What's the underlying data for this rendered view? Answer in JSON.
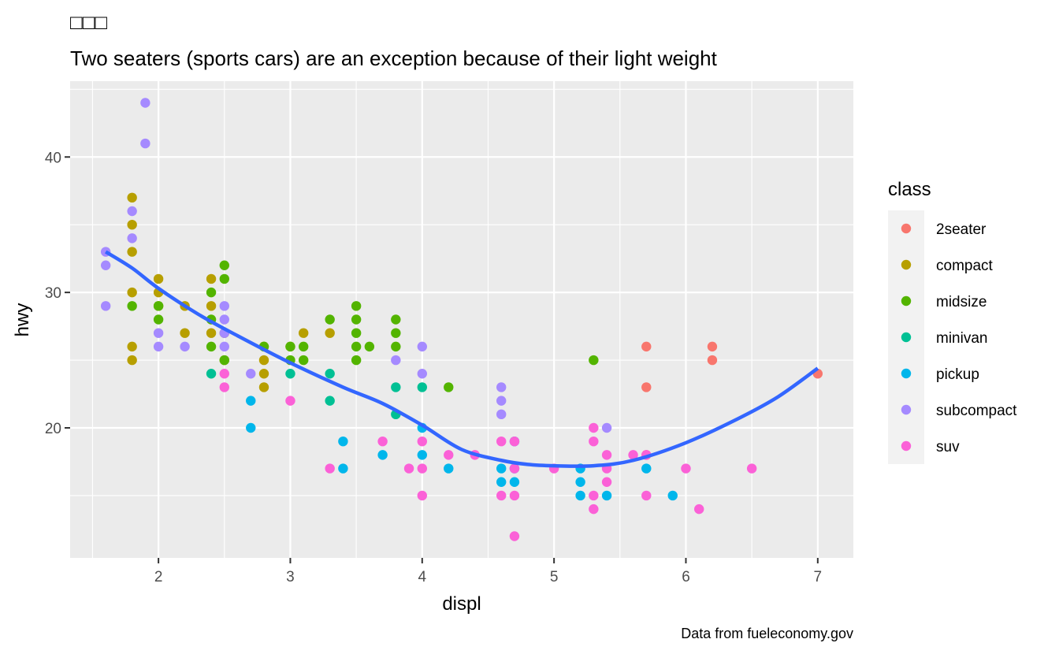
{
  "chart_data": {
    "type": "scatter",
    "title": "□□□",
    "subtitle": "Two seaters (sports cars) are an exception because of their light weight",
    "caption": "Data from fueleconomy.gov",
    "xlabel": "displ",
    "ylabel": "hwy",
    "xlim": [
      1.33,
      7.27
    ],
    "ylim": [
      10.4,
      45.6
    ],
    "x_ticks": [
      2,
      3,
      4,
      5,
      6,
      7
    ],
    "y_ticks": [
      20,
      30,
      40
    ],
    "grid": true,
    "legend": {
      "title": "class",
      "placement": "right",
      "entries": [
        {
          "name": "2seater",
          "color": "#F8766D"
        },
        {
          "name": "compact",
          "color": "#B79F00"
        },
        {
          "name": "midsize",
          "color": "#53B400"
        },
        {
          "name": "minivan",
          "color": "#00C094"
        },
        {
          "name": "pickup",
          "color": "#00B6EB"
        },
        {
          "name": "subcompact",
          "color": "#A58AFF"
        },
        {
          "name": "suv",
          "color": "#FB61D7"
        }
      ]
    },
    "series": [
      {
        "name": "2seater",
        "color": "#F8766D",
        "points": [
          [
            5.7,
            26
          ],
          [
            5.7,
            23
          ],
          [
            6.2,
            26
          ],
          [
            6.2,
            25
          ],
          [
            7.0,
            24
          ],
          [
            5.7,
            18
          ]
        ]
      },
      {
        "name": "compact",
        "color": "#B79F00",
        "points": [
          [
            1.8,
            37
          ],
          [
            1.8,
            35
          ],
          [
            1.8,
            33
          ],
          [
            1.8,
            30
          ],
          [
            1.8,
            26
          ],
          [
            1.8,
            25
          ],
          [
            2.0,
            31
          ],
          [
            2.0,
            30
          ],
          [
            2.0,
            29
          ],
          [
            2.2,
            29
          ],
          [
            2.2,
            27
          ],
          [
            2.4,
            31
          ],
          [
            2.4,
            29
          ],
          [
            2.4,
            27
          ],
          [
            2.5,
            27
          ],
          [
            2.5,
            25
          ],
          [
            2.8,
            26
          ],
          [
            2.8,
            25
          ],
          [
            2.8,
            24
          ],
          [
            2.8,
            23
          ],
          [
            3.0,
            26
          ],
          [
            3.1,
            27
          ],
          [
            3.3,
            27
          ]
        ]
      },
      {
        "name": "midsize",
        "color": "#53B400",
        "points": [
          [
            1.8,
            29
          ],
          [
            2.0,
            29
          ],
          [
            2.0,
            28
          ],
          [
            2.4,
            30
          ],
          [
            2.4,
            28
          ],
          [
            2.4,
            26
          ],
          [
            2.5,
            32
          ],
          [
            2.5,
            31
          ],
          [
            2.5,
            25
          ],
          [
            2.8,
            26
          ],
          [
            3.0,
            26
          ],
          [
            3.0,
            25
          ],
          [
            3.1,
            26
          ],
          [
            3.1,
            25
          ],
          [
            3.3,
            28
          ],
          [
            3.5,
            29
          ],
          [
            3.5,
            28
          ],
          [
            3.5,
            27
          ],
          [
            3.5,
            26
          ],
          [
            3.5,
            25
          ],
          [
            3.6,
            26
          ],
          [
            3.8,
            28
          ],
          [
            3.8,
            27
          ],
          [
            3.8,
            26
          ],
          [
            4.2,
            23
          ],
          [
            5.3,
            25
          ]
        ]
      },
      {
        "name": "minivan",
        "color": "#00C094",
        "points": [
          [
            2.4,
            24
          ],
          [
            3.0,
            24
          ],
          [
            3.3,
            24
          ],
          [
            3.3,
            22
          ],
          [
            3.8,
            23
          ],
          [
            3.8,
            21
          ],
          [
            4.0,
            23
          ]
        ]
      },
      {
        "name": "pickup",
        "color": "#00B6EB",
        "points": [
          [
            2.7,
            22
          ],
          [
            2.7,
            20
          ],
          [
            3.4,
            19
          ],
          [
            3.4,
            17
          ],
          [
            3.7,
            18
          ],
          [
            4.0,
            20
          ],
          [
            4.0,
            18
          ],
          [
            4.2,
            17
          ],
          [
            4.6,
            17
          ],
          [
            4.6,
            16
          ],
          [
            4.7,
            19
          ],
          [
            4.7,
            17
          ],
          [
            4.7,
            16
          ],
          [
            5.2,
            17
          ],
          [
            5.2,
            16
          ],
          [
            5.2,
            15
          ],
          [
            5.4,
            15
          ],
          [
            5.7,
            17
          ],
          [
            5.9,
            15
          ]
        ]
      },
      {
        "name": "subcompact",
        "color": "#A58AFF",
        "points": [
          [
            1.6,
            33
          ],
          [
            1.6,
            32
          ],
          [
            1.6,
            29
          ],
          [
            1.8,
            36
          ],
          [
            1.8,
            34
          ],
          [
            1.9,
            44
          ],
          [
            1.9,
            41
          ],
          [
            2.0,
            27
          ],
          [
            2.0,
            26
          ],
          [
            2.2,
            26
          ],
          [
            2.5,
            29
          ],
          [
            2.5,
            28
          ],
          [
            2.5,
            27
          ],
          [
            2.5,
            26
          ],
          [
            2.7,
            24
          ],
          [
            3.8,
            25
          ],
          [
            4.0,
            26
          ],
          [
            4.0,
            24
          ],
          [
            4.6,
            23
          ],
          [
            4.6,
            22
          ],
          [
            4.6,
            21
          ],
          [
            5.4,
            20
          ]
        ]
      },
      {
        "name": "suv",
        "color": "#FB61D7",
        "points": [
          [
            2.5,
            24
          ],
          [
            2.5,
            23
          ],
          [
            3.0,
            22
          ],
          [
            3.3,
            17
          ],
          [
            3.7,
            19
          ],
          [
            3.9,
            17
          ],
          [
            4.0,
            19
          ],
          [
            4.0,
            17
          ],
          [
            4.0,
            15
          ],
          [
            4.2,
            18
          ],
          [
            4.4,
            18
          ],
          [
            4.6,
            19
          ],
          [
            4.6,
            15
          ],
          [
            4.7,
            19
          ],
          [
            4.7,
            17
          ],
          [
            4.7,
            15
          ],
          [
            4.7,
            12
          ],
          [
            5.0,
            17
          ],
          [
            5.3,
            20
          ],
          [
            5.3,
            19
          ],
          [
            5.3,
            15
          ],
          [
            5.3,
            14
          ],
          [
            5.4,
            18
          ],
          [
            5.4,
            17
          ],
          [
            5.4,
            16
          ],
          [
            5.6,
            18
          ],
          [
            5.7,
            18
          ],
          [
            5.7,
            15
          ],
          [
            6.0,
            17
          ],
          [
            6.1,
            14
          ],
          [
            6.5,
            17
          ]
        ]
      }
    ],
    "smooth": {
      "color": "#3366FF",
      "points": [
        [
          1.6,
          33.0
        ],
        [
          1.8,
          31.8
        ],
        [
          2.0,
          30.3
        ],
        [
          2.3,
          28.4
        ],
        [
          2.6,
          26.8
        ],
        [
          3.0,
          24.8
        ],
        [
          3.4,
          23.0
        ],
        [
          3.7,
          21.8
        ],
        [
          4.0,
          20.2
        ],
        [
          4.3,
          18.4
        ],
        [
          4.6,
          17.6
        ],
        [
          4.8,
          17.3
        ],
        [
          5.0,
          17.2
        ],
        [
          5.3,
          17.2
        ],
        [
          5.6,
          17.6
        ],
        [
          6.0,
          18.9
        ],
        [
          6.4,
          20.7
        ],
        [
          6.7,
          22.3
        ],
        [
          7.0,
          24.4
        ]
      ]
    }
  }
}
